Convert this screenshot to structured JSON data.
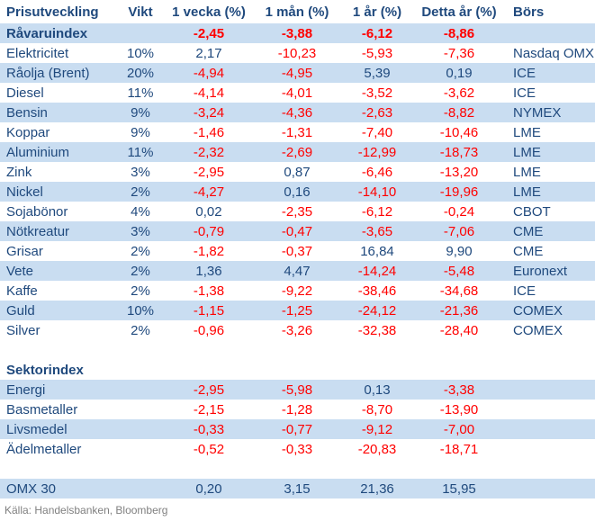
{
  "colors": {
    "header_text": "#1F497D",
    "positive_text": "#1F497D",
    "negative_text": "#FF0000",
    "stripe_bg": "#C9DDF1",
    "source_text": "#808080"
  },
  "chart_data": {
    "type": "table",
    "title": "Prisutveckling",
    "columns": [
      "Prisutveckling",
      "Vikt",
      "1 vecka (%)",
      "1 mån (%)",
      "1 år (%)",
      "Detta år (%)",
      "Börs"
    ],
    "rows": [
      {
        "type": "data",
        "label": "Råvaruindex",
        "vikt": "",
        "w1": "-2,45",
        "m1": "-3,88",
        "y1": "-6,12",
        "ytd": "-8,86",
        "bors": "",
        "shaded": true,
        "bold": true
      },
      {
        "type": "data",
        "label": "Elektricitet",
        "vikt": "10%",
        "w1": "2,17",
        "m1": "-10,23",
        "y1": "-5,93",
        "ytd": "-7,36",
        "bors": "Nasdaq OMX",
        "shaded": false,
        "bold": false
      },
      {
        "type": "data",
        "label": "Råolja (Brent)",
        "vikt": "20%",
        "w1": "-4,94",
        "m1": "-4,95",
        "y1": "5,39",
        "ytd": "0,19",
        "bors": "ICE",
        "shaded": true,
        "bold": false
      },
      {
        "type": "data",
        "label": "Diesel",
        "vikt": "11%",
        "w1": "-4,14",
        "m1": "-4,01",
        "y1": "-3,52",
        "ytd": "-3,62",
        "bors": "ICE",
        "shaded": false,
        "bold": false
      },
      {
        "type": "data",
        "label": "Bensin",
        "vikt": "9%",
        "w1": "-3,24",
        "m1": "-4,36",
        "y1": "-2,63",
        "ytd": "-8,82",
        "bors": "NYMEX",
        "shaded": true,
        "bold": false
      },
      {
        "type": "data",
        "label": "Koppar",
        "vikt": "9%",
        "w1": "-1,46",
        "m1": "-1,31",
        "y1": "-7,40",
        "ytd": "-10,46",
        "bors": "LME",
        "shaded": false,
        "bold": false
      },
      {
        "type": "data",
        "label": "Aluminium",
        "vikt": "11%",
        "w1": "-2,32",
        "m1": "-2,69",
        "y1": "-12,99",
        "ytd": "-18,73",
        "bors": "LME",
        "shaded": true,
        "bold": false
      },
      {
        "type": "data",
        "label": "Zink",
        "vikt": "3%",
        "w1": "-2,95",
        "m1": "0,87",
        "y1": "-6,46",
        "ytd": "-13,20",
        "bors": "LME",
        "shaded": false,
        "bold": false
      },
      {
        "type": "data",
        "label": "Nickel",
        "vikt": "2%",
        "w1": "-4,27",
        "m1": "0,16",
        "y1": "-14,10",
        "ytd": "-19,96",
        "bors": "LME",
        "shaded": true,
        "bold": false
      },
      {
        "type": "data",
        "label": "Sojabönor",
        "vikt": "4%",
        "w1": "0,02",
        "m1": "-2,35",
        "y1": "-6,12",
        "ytd": "-0,24",
        "bors": "CBOT",
        "shaded": false,
        "bold": false
      },
      {
        "type": "data",
        "label": "Nötkreatur",
        "vikt": "3%",
        "w1": "-0,79",
        "m1": "-0,47",
        "y1": "-3,65",
        "ytd": "-7,06",
        "bors": "CME",
        "shaded": true,
        "bold": false
      },
      {
        "type": "data",
        "label": "Grisar",
        "vikt": "2%",
        "w1": "-1,82",
        "m1": "-0,37",
        "y1": "16,84",
        "ytd": "9,90",
        "bors": "CME",
        "shaded": false,
        "bold": false
      },
      {
        "type": "data",
        "label": "Vete",
        "vikt": "2%",
        "w1": "1,36",
        "m1": "4,47",
        "y1": "-14,24",
        "ytd": "-5,48",
        "bors": "Euronext",
        "shaded": true,
        "bold": false
      },
      {
        "type": "data",
        "label": "Kaffe",
        "vikt": "2%",
        "w1": "-1,38",
        "m1": "-9,22",
        "y1": "-38,46",
        "ytd": "-34,68",
        "bors": "ICE",
        "shaded": false,
        "bold": false
      },
      {
        "type": "data",
        "label": "Guld",
        "vikt": "10%",
        "w1": "-1,15",
        "m1": "-1,25",
        "y1": "-24,12",
        "ytd": "-21,36",
        "bors": "COMEX",
        "shaded": true,
        "bold": false
      },
      {
        "type": "data",
        "label": "Silver",
        "vikt": "2%",
        "w1": "-0,96",
        "m1": "-3,26",
        "y1": "-32,38",
        "ytd": "-28,40",
        "bors": "COMEX",
        "shaded": false,
        "bold": false
      },
      {
        "type": "spacer",
        "label": "",
        "vikt": "",
        "w1": "",
        "m1": "",
        "y1": "",
        "ytd": "",
        "bors": "",
        "shaded": false,
        "bold": false
      },
      {
        "type": "section",
        "label": "Sektorindex",
        "vikt": "",
        "w1": "",
        "m1": "",
        "y1": "",
        "ytd": "",
        "bors": "",
        "shaded": false,
        "bold": true
      },
      {
        "type": "data",
        "label": "Energi",
        "vikt": "",
        "w1": "-2,95",
        "m1": "-5,98",
        "y1": "0,13",
        "ytd": "-3,38",
        "bors": "",
        "shaded": true,
        "bold": false
      },
      {
        "type": "data",
        "label": "Basmetaller",
        "vikt": "",
        "w1": "-2,15",
        "m1": "-1,28",
        "y1": "-8,70",
        "ytd": "-13,90",
        "bors": "",
        "shaded": false,
        "bold": false
      },
      {
        "type": "data",
        "label": "Livsmedel",
        "vikt": "",
        "w1": "-0,33",
        "m1": "-0,77",
        "y1": "-9,12",
        "ytd": "-7,00",
        "bors": "",
        "shaded": true,
        "bold": false
      },
      {
        "type": "data",
        "label": "Ädelmetaller",
        "vikt": "",
        "w1": "-0,52",
        "m1": "-0,33",
        "y1": "-20,83",
        "ytd": "-18,71",
        "bors": "",
        "shaded": false,
        "bold": false
      },
      {
        "type": "spacer",
        "label": "",
        "vikt": "",
        "w1": "",
        "m1": "",
        "y1": "",
        "ytd": "",
        "bors": "",
        "shaded": false,
        "bold": false
      },
      {
        "type": "data",
        "label": "OMX 30",
        "vikt": "",
        "w1": "0,20",
        "m1": "3,15",
        "y1": "21,36",
        "ytd": "15,95",
        "bors": "",
        "shaded": true,
        "bold": false
      }
    ],
    "source": "Källa: Handelsbanken, Bloomberg"
  }
}
